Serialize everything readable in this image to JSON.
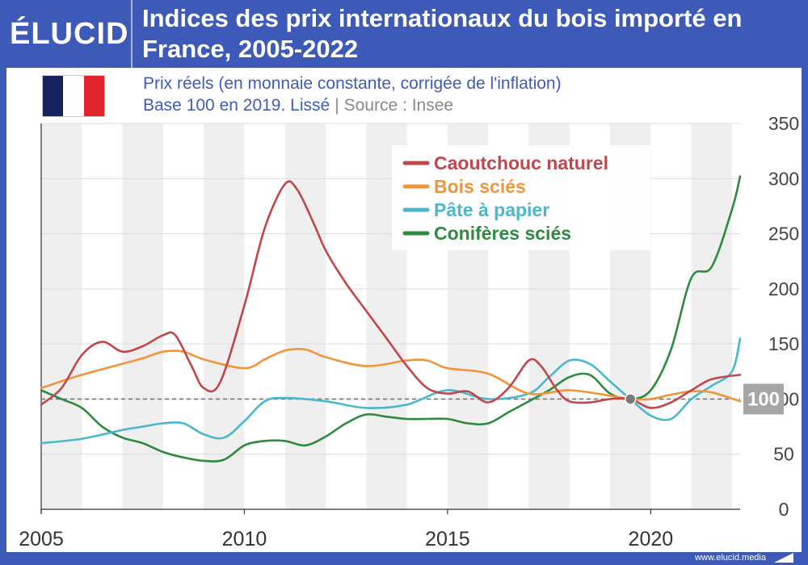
{
  "brand": {
    "logo": "ÉLUCID",
    "url": "www.elucid.media"
  },
  "title": "Indices des prix internationaux du bois importé en France, 2005-2022",
  "subtitle": {
    "line1": "Prix réels (en monnaie constante, corrigée de l'inflation)",
    "line2_main": "Base 100 en 2019. Lissé",
    "line2_sep": "|",
    "line2_source": "Source : Insee"
  },
  "colors": {
    "header_bg": "#3d5ab8",
    "caoutchouc": "#c0474b",
    "bois": "#f0953a",
    "pate": "#4bb7cf",
    "coniferes": "#2e8b3e",
    "flag_blue": "#16235c",
    "flag_red": "#e0252f"
  },
  "icons": {
    "country_flag": "france-flag-icon",
    "footer": "elucid-mark-icon"
  },
  "chart_data": {
    "type": "line",
    "x_ticks": [
      2005,
      2010,
      2015,
      2020
    ],
    "y_ticks": [
      0,
      50,
      100,
      150,
      200,
      250,
      300,
      350
    ],
    "xlim": [
      2005,
      2022.2
    ],
    "ylim": [
      0,
      350
    ],
    "grid": true,
    "legend_position": "top-right",
    "reference_line": 100,
    "reference_label": "100",
    "highlight_point": {
      "x": 2019.5,
      "y": 100
    },
    "series": [
      {
        "name": "Caoutchouc naturel",
        "color_key": "caoutchouc",
        "x": [
          2005,
          2005.5,
          2006,
          2006.5,
          2007,
          2007.5,
          2008,
          2008.3,
          2008.7,
          2009,
          2009.4,
          2010,
          2010.5,
          2011,
          2011.3,
          2011.7,
          2012,
          2012.5,
          2013,
          2013.5,
          2014,
          2014.5,
          2015,
          2015.5,
          2016,
          2016.5,
          2017,
          2017.3,
          2017.7,
          2018,
          2018.5,
          2019,
          2019.5,
          2020,
          2020.5,
          2021,
          2021.5,
          2022.2
        ],
        "y": [
          95,
          110,
          140,
          152,
          143,
          148,
          158,
          158,
          130,
          110,
          115,
          185,
          255,
          295,
          290,
          260,
          235,
          205,
          180,
          155,
          130,
          110,
          105,
          107,
          97,
          110,
          135,
          130,
          108,
          98,
          97,
          100,
          100,
          92,
          97,
          108,
          118,
          122
        ]
      },
      {
        "name": "Bois sciés",
        "color_key": "bois",
        "x": [
          2005,
          2006,
          2007,
          2007.5,
          2008,
          2008.5,
          2009,
          2010,
          2010.5,
          2011,
          2011.5,
          2012,
          2013,
          2014,
          2014.5,
          2015,
          2016,
          2017,
          2018,
          2019,
          2019.5,
          2020,
          2020.5,
          2021,
          2021.5,
          2022.2
        ],
        "y": [
          110,
          122,
          132,
          137,
          143,
          143,
          136,
          128,
          136,
          144,
          145,
          138,
          130,
          135,
          135,
          128,
          123,
          105,
          108,
          103,
          100,
          100,
          104,
          107,
          106,
          98
        ]
      },
      {
        "name": "Pâte à papier",
        "color_key": "pate",
        "x": [
          2005,
          2006,
          2007,
          2007.5,
          2008,
          2008.5,
          2009,
          2009.5,
          2010,
          2010.5,
          2011,
          2012,
          2013,
          2014,
          2015,
          2016,
          2017,
          2017.5,
          2018,
          2018.5,
          2019,
          2019.5,
          2020,
          2020.5,
          2021,
          2021.5,
          2022,
          2022.2
        ],
        "y": [
          60,
          64,
          72,
          75,
          78,
          78,
          68,
          65,
          80,
          98,
          101,
          98,
          92,
          95,
          108,
          100,
          105,
          120,
          135,
          132,
          116,
          100,
          85,
          82,
          100,
          112,
          125,
          155
        ]
      },
      {
        "name": "Conifères sciés",
        "color_key": "coniferes",
        "x": [
          2005,
          2005.5,
          2006,
          2006.5,
          2007,
          2007.5,
          2008,
          2008.5,
          2009,
          2009.5,
          2010,
          2010.5,
          2011,
          2011.5,
          2012,
          2012.5,
          2013,
          2013.5,
          2014,
          2014.5,
          2015,
          2015.5,
          2016,
          2016.5,
          2017,
          2017.5,
          2018,
          2018.5,
          2019,
          2019.5,
          2020,
          2020.5,
          2021,
          2021.5,
          2022,
          2022.2
        ],
        "y": [
          108,
          100,
          92,
          75,
          65,
          60,
          52,
          47,
          44,
          45,
          58,
          62,
          62,
          58,
          66,
          78,
          86,
          84,
          82,
          82,
          82,
          78,
          78,
          88,
          98,
          108,
          120,
          122,
          105,
          100,
          108,
          145,
          210,
          220,
          272,
          302
        ]
      }
    ]
  }
}
